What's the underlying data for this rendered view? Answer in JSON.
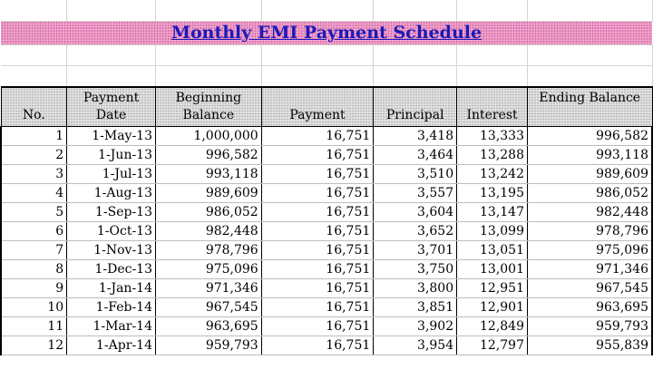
{
  "title": "Monthly EMI Payment Schedule",
  "headers": {
    "no": "No.",
    "payment_date": "Payment Date",
    "beginning_balance": "Beginning Balance",
    "payment": "Payment",
    "principal": "Principal",
    "interest": "Interest",
    "ending_balance": "Ending Balance"
  },
  "rows": [
    [
      "1",
      "1-May-13",
      "1,000,000",
      "16,751",
      "3,418",
      "13,333",
      "996,582"
    ],
    [
      "2",
      "1-Jun-13",
      "996,582",
      "16,751",
      "3,464",
      "13,288",
      "993,118"
    ],
    [
      "3",
      "1-Jul-13",
      "993,118",
      "16,751",
      "3,510",
      "13,242",
      "989,609"
    ],
    [
      "4",
      "1-Aug-13",
      "989,609",
      "16,751",
      "3,557",
      "13,195",
      "986,052"
    ],
    [
      "5",
      "1-Sep-13",
      "986,052",
      "16,751",
      "3,604",
      "13,147",
      "982,448"
    ],
    [
      "6",
      "1-Oct-13",
      "982,448",
      "16,751",
      "3,652",
      "13,099",
      "978,796"
    ],
    [
      "7",
      "1-Nov-13",
      "978,796",
      "16,751",
      "3,701",
      "13,051",
      "975,096"
    ],
    [
      "8",
      "1-Dec-13",
      "975,096",
      "16,751",
      "3,750",
      "13,001",
      "971,346"
    ],
    [
      "9",
      "1-Jan-14",
      "971,346",
      "16,751",
      "3,800",
      "12,951",
      "967,545"
    ],
    [
      "10",
      "1-Feb-14",
      "967,545",
      "16,751",
      "3,851",
      "12,901",
      "963,695"
    ],
    [
      "11",
      "1-Mar-14",
      "963,695",
      "16,751",
      "3,902",
      "12,849",
      "959,793"
    ],
    [
      "12",
      "1-Apr-14",
      "959,793",
      "16,751",
      "3,954",
      "12,797",
      "955,839"
    ]
  ]
}
